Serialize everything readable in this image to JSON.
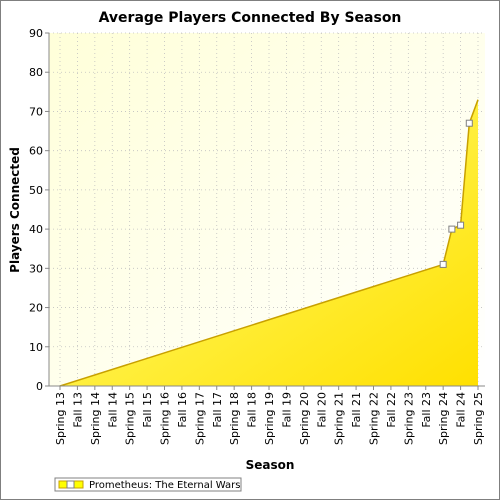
{
  "chart_data": {
    "type": "area",
    "title": "Average Players Connected By Season",
    "xlabel": "Season",
    "ylabel": "Players Connected",
    "ylim": [
      0,
      90
    ],
    "y_ticks": [
      0,
      10,
      20,
      30,
      40,
      50,
      60,
      70,
      80,
      90
    ],
    "x_ticks": [
      "Spring 13",
      "Fall 13",
      "Spring 14",
      "Fall 14",
      "Spring 15",
      "Fall 15",
      "Spring 16",
      "Fall 16",
      "Spring 17",
      "Fall 17",
      "Spring 18",
      "Fall 18",
      "Spring 19",
      "Fall 19",
      "Spring 20",
      "Fall 20",
      "Spring 21",
      "Fall 21",
      "Spring 22",
      "Fall 22",
      "Spring 23",
      "Fall 23",
      "Spring 24",
      "Fall 24",
      "Spring 25"
    ],
    "x_range": [
      "Spring 13",
      "Spring 25"
    ],
    "grid": true,
    "legend_position": "bottom-left",
    "series": [
      {
        "name": "Prometheus: The Eternal Wars",
        "color": "#ffff00",
        "line_color": "#c8a000",
        "points": [
          {
            "x": "Spring 13",
            "y": 0
          },
          {
            "x": "Spring 24",
            "y": 31
          },
          {
            "x": "Spring 24 (2)",
            "y": 40
          },
          {
            "x": "Fall 24",
            "y": 41
          },
          {
            "x": "Fall 24 (2)",
            "y": 67
          },
          {
            "x": "Spring 25",
            "y": 73
          }
        ],
        "marked_points": [
          {
            "x": "Spring 24",
            "y": 31
          },
          {
            "x": "Spring 24 (2)",
            "y": 40
          },
          {
            "x": "Fall 24",
            "y": 41
          },
          {
            "x": "Fall 24 (2)",
            "y": 67
          }
        ]
      }
    ]
  }
}
